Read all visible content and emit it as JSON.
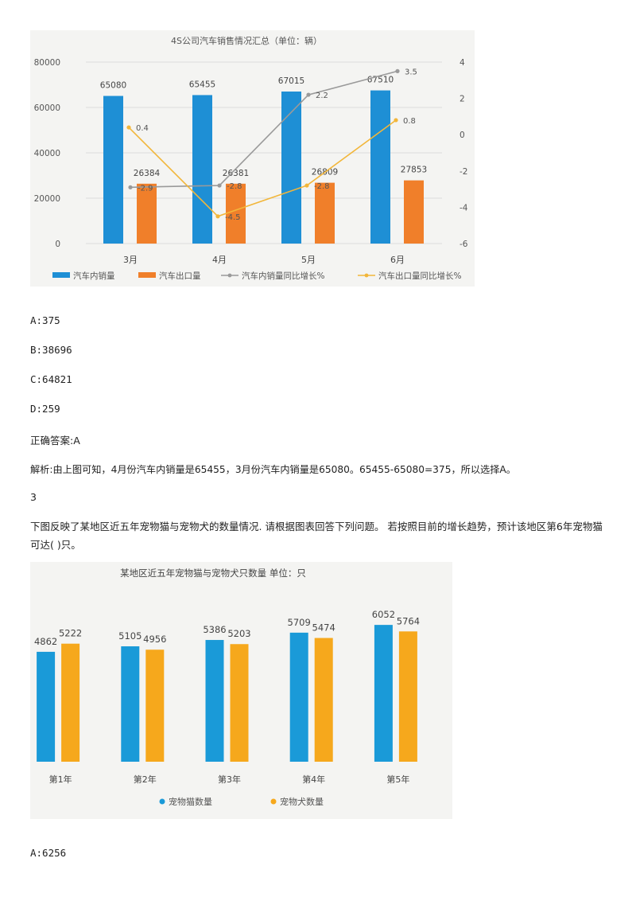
{
  "chart_data": [
    {
      "type": "bar",
      "title": "4S公司汽车销售情况汇总（单位：辆）",
      "categories": [
        "3月",
        "4月",
        "5月",
        "6月"
      ],
      "series": [
        {
          "name": "汽车内销量",
          "kind": "bar",
          "axis": "left",
          "color": "#1e8fd5",
          "values": [
            65080,
            65455,
            67015,
            67510
          ]
        },
        {
          "name": "汽车出口量",
          "kind": "bar",
          "axis": "left",
          "color": "#f07f2a",
          "values": [
            26384,
            26381,
            26809,
            27853
          ]
        },
        {
          "name": "汽车内销量同比增长%",
          "kind": "line",
          "axis": "right",
          "color": "#9a9a9a",
          "values": [
            -2.9,
            -2.8,
            2.2,
            3.5
          ],
          "labels": [
            "-2.9",
            "-2.8",
            "2.2",
            "3.5"
          ]
        },
        {
          "name": "汽车出口量同比增长%",
          "kind": "line",
          "axis": "right",
          "color": "#f2b63a",
          "values": [
            0.4,
            -4.5,
            -2.8,
            0.8
          ],
          "labels": [
            "0.4",
            "-4.5",
            "-2.8",
            "0.8"
          ]
        }
      ],
      "y_left_ticks": [
        "0",
        "20000",
        "40000",
        "60000",
        "80000"
      ],
      "y_left_range": [
        0,
        80000
      ],
      "y_right_ticks": [
        "-6",
        "-4",
        "-2",
        "0",
        "2",
        "4"
      ],
      "y_right_range": [
        -6,
        4
      ],
      "legend": "bottom"
    },
    {
      "type": "bar",
      "title": "某地区近五年宠物猫与宠物犬只数量 单位：只",
      "categories": [
        "第1年",
        "第2年",
        "第3年",
        "第4年",
        "第5年"
      ],
      "series": [
        {
          "name": "宠物猫数量",
          "color": "#1a9ad8",
          "values": [
            4862,
            5105,
            5386,
            5709,
            6052
          ]
        },
        {
          "name": "宠物犬数量",
          "color": "#f6a81c",
          "values": [
            5222,
            4956,
            5203,
            5474,
            5764
          ]
        }
      ],
      "legend": "bottom"
    }
  ],
  "q2": {
    "options": [
      "A:375",
      "B:38696",
      "C:64821",
      "D:259"
    ],
    "answer": "正确答案:A",
    "explanation": "解析:由上图可知，4月份汽车内销量是65455，3月份汽车内销量是65080。65455-65080=375，所以选择A。"
  },
  "q3": {
    "number": "3",
    "question": "下图反映了某地区近五年宠物猫与宠物犬的数量情况. 请根据图表回答下列问题。 若按照目前的增长趋势，预计该地区第6年宠物猫可达( )只。",
    "options": [
      "A:6256"
    ]
  }
}
